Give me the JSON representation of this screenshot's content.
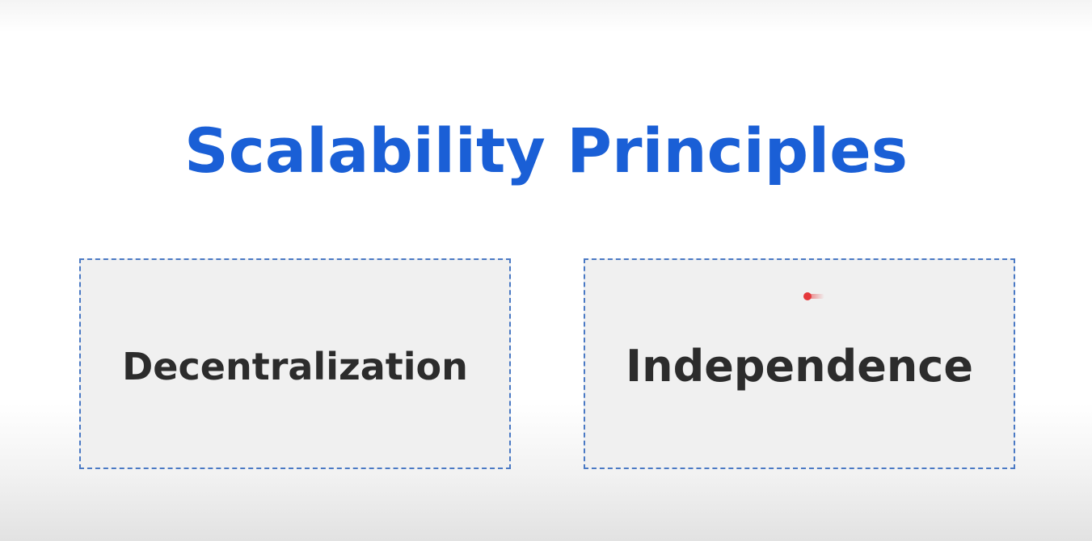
{
  "slide": {
    "title": "Scalability Principles",
    "cards": [
      {
        "label": "Decentralization"
      },
      {
        "label": "Independence"
      }
    ]
  },
  "pointer": {
    "icon": "laser-pointer-icon",
    "color": "#e5383b"
  },
  "colors": {
    "title": "#1a5fd6",
    "card_text": "#2c2c2c",
    "card_border": "#4a79c4",
    "card_background": "#f0f0f0"
  }
}
